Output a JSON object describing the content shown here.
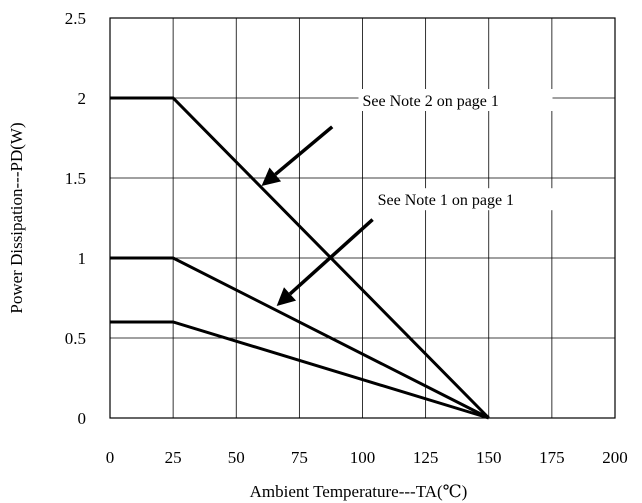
{
  "chart_data": {
    "type": "line",
    "title": "",
    "xlabel": "Ambient Temperature---TA(℃)",
    "ylabel": "Power Dissipation---PD(W)",
    "xlim": [
      0,
      200
    ],
    "ylim": [
      0,
      2.5
    ],
    "x_ticks": [
      "0",
      "25",
      "50",
      "75",
      "100",
      "125",
      "150",
      "175",
      "200"
    ],
    "y_ticks": [
      "0",
      "0.5",
      "1",
      "1.5",
      "2",
      "2.5"
    ],
    "grid": true,
    "series": [
      {
        "x": [
          0,
          25,
          150
        ],
        "y": [
          2.0,
          2.0,
          0
        ]
      },
      {
        "x": [
          0,
          25,
          150
        ],
        "y": [
          1.0,
          1.0,
          0
        ]
      },
      {
        "x": [
          0,
          25,
          150
        ],
        "y": [
          0.6,
          0.6,
          0
        ]
      }
    ],
    "annotations": [
      {
        "text": "See Note 2 on page 1",
        "text_pos": [
          100,
          1.95
        ],
        "arrow_tip": [
          60,
          1.45
        ],
        "arrow_tail": [
          88,
          1.82
        ]
      },
      {
        "text": "See Note 1 on page 1",
        "text_pos": [
          106,
          1.33
        ],
        "arrow_tip": [
          66,
          0.7
        ],
        "arrow_tail": [
          104,
          1.24
        ]
      }
    ]
  }
}
